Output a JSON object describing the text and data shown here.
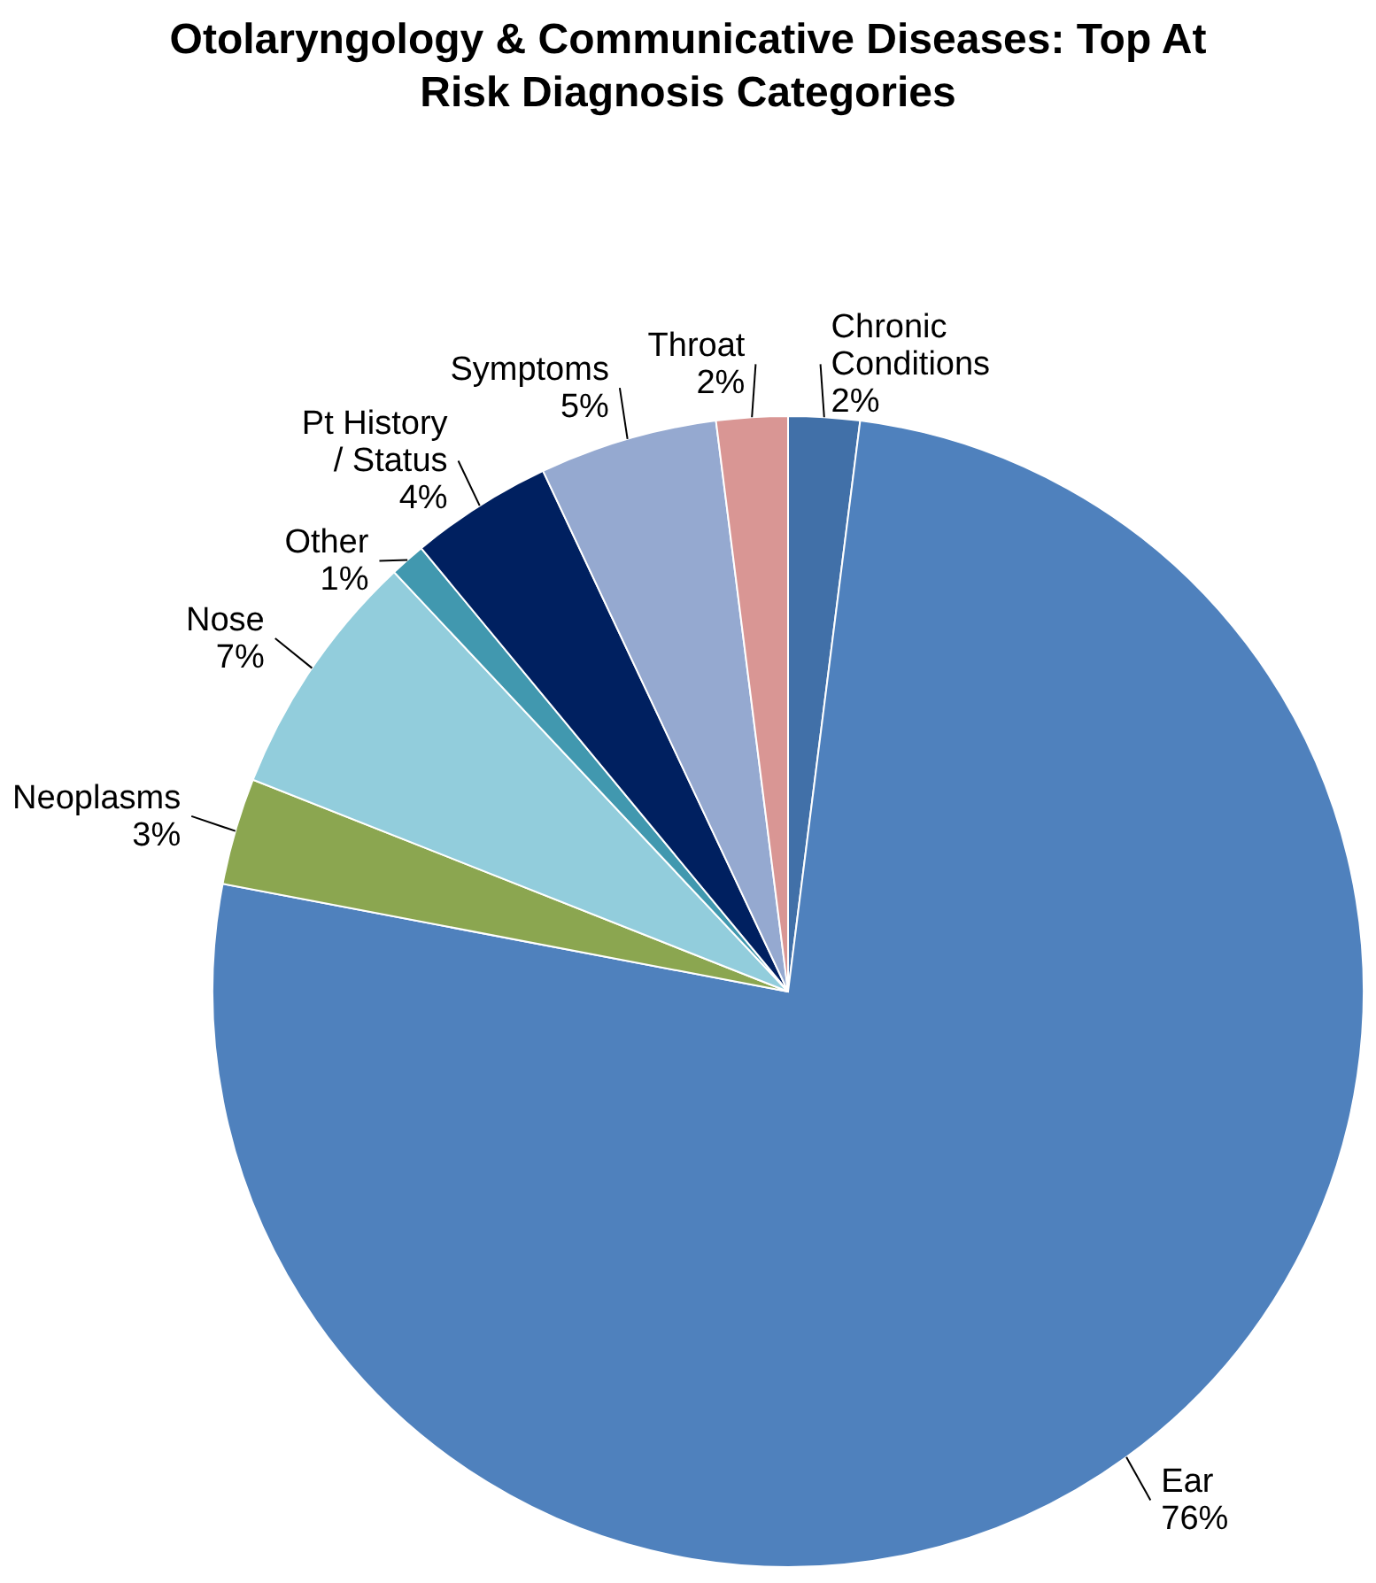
{
  "chart_data": {
    "type": "pie",
    "title": "Otolaryngology & Communicative Diseases: Top At Risk Diagnosis Categories",
    "categories": [
      "Chronic Conditions",
      "Ear",
      "Neoplasms",
      "Nose",
      "Other",
      "Pt History / Status",
      "Symptoms",
      "Throat"
    ],
    "values": [
      2,
      76,
      3,
      7,
      1,
      4,
      5,
      2
    ],
    "value_labels": [
      "2%",
      "76%",
      "3%",
      "7%",
      "1%",
      "4%",
      "5%",
      "2%"
    ],
    "colors": [
      "#4170a8",
      "#4f81bd",
      "#8ba650",
      "#92cddc",
      "#4198af",
      "#002060",
      "#95a9d0",
      "#d99694"
    ]
  }
}
